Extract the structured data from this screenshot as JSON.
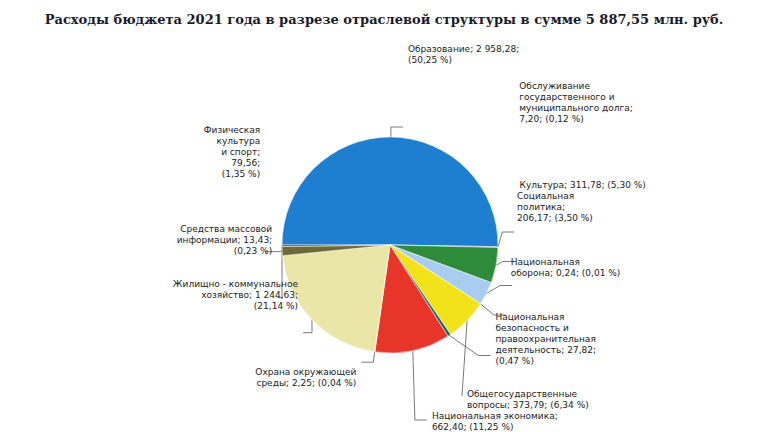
{
  "chart_data": {
    "type": "pie",
    "title": "Расходы бюджета 2021 года в разрезе отраслевой структуры в сумме 5 887,55 млн. руб.",
    "categories": [
      "Образование",
      "Обслуживание государственного и муниципального долга",
      "Культура",
      "Социальная политика",
      "Национальная оборона",
      "Общегосударственные вопросы",
      "Национальная безопасность и правоохранительная деятельность",
      "Национальная экономика",
      "Охрана окружающей среды",
      "Жилищно - коммунальное хозяйство",
      "Физическая культура и спорт",
      "Средства массовой информации"
    ],
    "values": [
      2958.28,
      7.2,
      311.78,
      206.17,
      0.24,
      373.79,
      27.82,
      662.4,
      2.25,
      1244.63,
      79.56,
      13.43
    ],
    "value_labels": [
      "Образование; 2 958,28;\n(50,25 %)",
      "Обслуживание\nгосударственного и\nмуниципального долга;\n7,20; (0,12 %)",
      "Культура; 311,78; (5,30 %)",
      "Социальная\nполитика;\n206,17; (3,50 %)",
      "Национальная\nоборона; 0,24; (0,01 %)",
      "Общегосударственные\nвопросы; 373,79; (6,34 %)",
      "Национальная\nбезопасность и\nправоохранительная\nдеятельность; 27,82;\n(0,47 %)",
      "Национальная экономика;\n662,40; (11,25 %)",
      "Охрана окружающей\nсреды; 2,25; (0,04 %)",
      "Жилищно - коммунальное\nхозяйство; 1 244,63;\n(21,14 %)",
      "Физическая\nкультура\nи спорт;\n79,56;\n(1,35 %)",
      "Средства массовой\nинформации; 13,43;\n(0,23 %)"
    ],
    "colors": [
      "#1e7fd0",
      "#3a3a5a",
      "#2e8b3a",
      "#a8cdf0",
      "#8a4f9e",
      "#f2e21a",
      "#1f5f6a",
      "#e8352a",
      "#e8506a",
      "#e9e6a8",
      "#6b6b3a",
      "#5a3020"
    ],
    "data_labels": true
  }
}
